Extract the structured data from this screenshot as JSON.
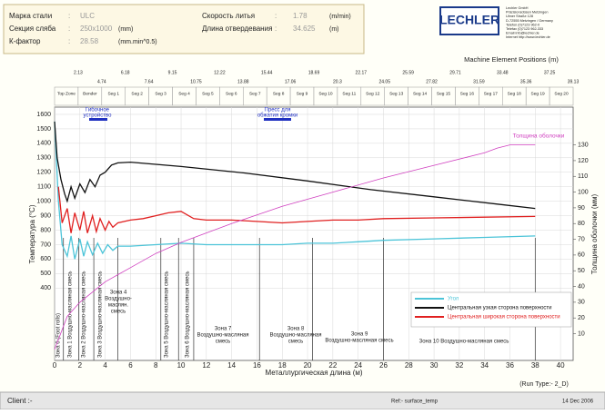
{
  "header": {
    "separator": ":",
    "params": [
      {
        "label": "Марка стали",
        "value": "ULC",
        "unit": ""
      },
      {
        "label": "Секция сляба",
        "value": "250x1000",
        "unit": "(mm)"
      },
      {
        "label": "К-фактор",
        "value": "28.58",
        "unit": "(mm.min^0.5)"
      },
      {
        "label": "Скорость литья",
        "value": "1.78",
        "unit": "(m/min)"
      },
      {
        "label": "Длина отвердевания",
        "value": "34.625",
        "unit": "(m)"
      }
    ],
    "logo": "LECHLER",
    "address": [
      "Lechler GmbH",
      "Präzisionsdüsen Metzingen",
      "Ulmer Straße 128",
      "D-72555 Metzingen / Germany",
      "Telefon  (0)7123 962-0",
      "Telefax  (0)7123 962-333",
      "Email  info@lechler.de",
      "Internet  http://www.lechler.de"
    ]
  },
  "machine_positions": {
    "title": "Machine Element Positions (m)",
    "segments": [
      "Top Zone",
      "Bender",
      "Seg 1",
      "Seg 2",
      "Seg 3",
      "Seg 4",
      "Seg 5",
      "Seg 6",
      "Seg 7",
      "Seg 8",
      "Seg 9",
      "Seg 10",
      "Seg 11",
      "Seg 12",
      "Seg 13",
      "Seg 14",
      "Seg 15",
      "Seg 16",
      "Seg 17",
      "Seg 18",
      "Seg 19",
      "Seg 20"
    ],
    "positions": [
      "2.13",
      "4.74",
      "6.18",
      "7.64",
      "9.15",
      "10.75",
      "12.22",
      "13.88",
      "15.44",
      "17.06",
      "18.69",
      "20.3",
      "22.17",
      "24.05",
      "25.59",
      "27.82",
      "29.71",
      "31.59",
      "33.48",
      "35.36",
      "37.25",
      "39.13"
    ]
  },
  "chart_data": {
    "type": "line",
    "x_label": "Металлургическая длина (м)",
    "y_label": "Температура (°C)",
    "y2_label": "Толщина оболочки (мм)",
    "run_type": "(Run Type:- 2_D)",
    "xlim": [
      0,
      41
    ],
    "xticks": [
      0,
      2,
      4,
      6,
      8,
      10,
      12,
      14,
      16,
      18,
      20,
      22,
      24,
      26,
      28,
      30,
      32,
      34,
      36,
      38,
      40
    ],
    "ylim": [
      -100,
      1650
    ],
    "yticks": [
      400,
      500,
      600,
      700,
      800,
      900,
      1000,
      1100,
      1200,
      1300,
      1400,
      1500,
      1600
    ],
    "y2lim": [
      -7,
      154
    ],
    "y2ticks": [
      10,
      20,
      30,
      40,
      50,
      60,
      70,
      80,
      90,
      100,
      110,
      120,
      130
    ],
    "grid": true,
    "legend": "lower right",
    "series": [
      {
        "name": "Угол",
        "color": "#4cc4d8",
        "x": [
          0,
          0.3,
          0.6,
          1,
          1.3,
          1.6,
          2,
          2.3,
          2.6,
          3,
          3.4,
          3.8,
          4.2,
          4.6,
          5,
          6,
          8,
          10,
          12,
          14,
          16,
          18,
          20,
          22,
          24,
          26,
          30,
          34,
          38
        ],
        "values": [
          1550,
          1000,
          700,
          620,
          760,
          600,
          740,
          620,
          720,
          630,
          710,
          640,
          700,
          660,
          690,
          690,
          700,
          710,
          700,
          700,
          700,
          700,
          710,
          710,
          720,
          730,
          740,
          750,
          760
        ]
      },
      {
        "name": "Центральная узкая сторона поверхности",
        "color": "#111111",
        "x": [
          0,
          0.2,
          0.5,
          0.8,
          1,
          1.3,
          1.6,
          2,
          2.4,
          2.8,
          3.2,
          3.6,
          4,
          4.5,
          5,
          6,
          8,
          10,
          15,
          20,
          25,
          30,
          35,
          38
        ],
        "values": [
          1550,
          1300,
          1150,
          1050,
          1000,
          1100,
          1020,
          1120,
          1060,
          1150,
          1100,
          1180,
          1200,
          1250,
          1265,
          1270,
          1255,
          1240,
          1195,
          1140,
          1080,
          1030,
          980,
          950
        ]
      },
      {
        "name": "Центральная широкая сторона поверхности",
        "color": "#e02020",
        "x": [
          0.3,
          0.6,
          1,
          1.3,
          1.6,
          2,
          2.3,
          2.6,
          3,
          3.3,
          3.6,
          4,
          4.3,
          4.6,
          5,
          6,
          7,
          8,
          9,
          10,
          11,
          12,
          14,
          16,
          18,
          20,
          22,
          24,
          26,
          30,
          34,
          38
        ],
        "values": [
          1100,
          850,
          950,
          780,
          920,
          800,
          930,
          780,
          900,
          790,
          880,
          800,
          860,
          820,
          850,
          870,
          880,
          900,
          920,
          930,
          880,
          870,
          870,
          860,
          850,
          860,
          870,
          870,
          880,
          885,
          890,
          895
        ]
      },
      {
        "name": "Толщина оболочки",
        "color": "#d040c0",
        "axis": "y2",
        "x": [
          0,
          1,
          2,
          4,
          6,
          8,
          10,
          14,
          18,
          22,
          26,
          30,
          34,
          35,
          36,
          38
        ],
        "values": [
          0,
          21,
          30,
          43,
          52,
          61,
          68,
          80,
          91,
          100,
          109,
          117,
          125,
          128,
          130,
          130
        ]
      }
    ],
    "annotations": [
      {
        "lines": [
          "Гибочное",
          "устройство"
        ],
        "color": "#2030c0"
      },
      {
        "lines": [
          "Пресс для",
          "обжатия кромки"
        ],
        "color": "#2030c0"
      }
    ],
    "zone_boundaries": [
      0.7,
      1.9,
      3.1,
      5.0,
      8.4,
      9.8,
      11.0,
      16.2,
      20.4,
      26.0,
      38.0
    ],
    "zone_labels": [
      [
        "Зона 0 (Foot rolls)"
      ],
      [
        "Зона 1 Воздушно-масляная смесь"
      ],
      [
        "Зона 2 Воздушно-масляная смесь"
      ],
      [
        "Зона 3 Воздушно-масляная смесь"
      ],
      [
        "Зона 4",
        "Воздушно-",
        "маслян.",
        "смесь"
      ],
      [
        "Зона 5 Воздушно-масляная смесь"
      ],
      [
        "Зона 6 Воздушно-масляная смесь"
      ],
      [
        "Зона 7",
        "Воздушно-масляная",
        "смесь"
      ],
      [
        "Зона 8",
        "Воздушно-масляная",
        "смесь"
      ],
      [
        "Зона 9",
        "Воздушно-масляная смесь"
      ],
      [
        "Зона 10 Воздушно-масляная смесь"
      ]
    ]
  },
  "footer": {
    "client": "Client :-",
    "ref": "Ref:- surface_temp",
    "date": "14 Dec 2006"
  }
}
